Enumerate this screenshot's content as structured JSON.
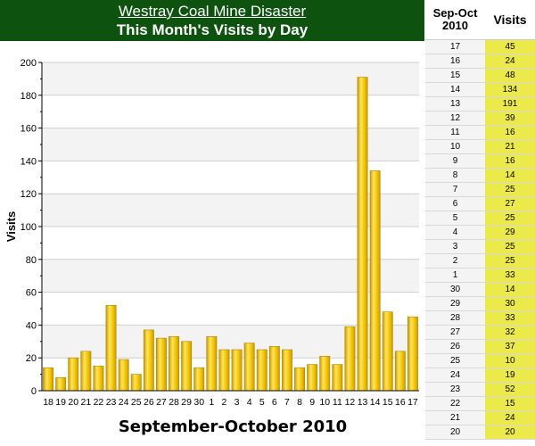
{
  "header": {
    "link_title": "Westray Coal Mine Disaster",
    "subtitle": "This Month's Visits by Day"
  },
  "colors": {
    "header_bg": "#0e5210",
    "bar_fill": "#f2c400",
    "bar_highlight": "#ffe45c",
    "bar_shadow": "#c99a00",
    "table_value_bg": "#ece94a"
  },
  "chart_data": {
    "type": "bar",
    "title": "This Month's Visits by Day",
    "xlabel": "September-October 2010",
    "ylabel": "Visits",
    "ylim": [
      0,
      200
    ],
    "yticks": [
      0,
      20,
      40,
      60,
      80,
      100,
      120,
      140,
      160,
      180,
      200
    ],
    "grid": true,
    "categories": [
      "18",
      "19",
      "20",
      "21",
      "22",
      "23",
      "24",
      "25",
      "26",
      "27",
      "28",
      "29",
      "30",
      "1",
      "2",
      "3",
      "4",
      "5",
      "6",
      "7",
      "8",
      "9",
      "10",
      "11",
      "12",
      "13",
      "14",
      "15",
      "16",
      "17"
    ],
    "values": [
      14,
      8,
      20,
      24,
      15,
      52,
      19,
      10,
      37,
      32,
      33,
      30,
      14,
      33,
      25,
      25,
      29,
      25,
      27,
      25,
      14,
      16,
      21,
      16,
      39,
      191,
      134,
      48,
      24,
      45
    ]
  },
  "table": {
    "date_header": "Sep-Oct 2010",
    "visits_header": "Visits",
    "rows": [
      {
        "day": "17",
        "visits": "45"
      },
      {
        "day": "16",
        "visits": "24"
      },
      {
        "day": "15",
        "visits": "48"
      },
      {
        "day": "14",
        "visits": "134"
      },
      {
        "day": "13",
        "visits": "191"
      },
      {
        "day": "12",
        "visits": "39"
      },
      {
        "day": "11",
        "visits": "16"
      },
      {
        "day": "10",
        "visits": "21"
      },
      {
        "day": "9",
        "visits": "16"
      },
      {
        "day": "8",
        "visits": "14"
      },
      {
        "day": "7",
        "visits": "25"
      },
      {
        "day": "6",
        "visits": "27"
      },
      {
        "day": "5",
        "visits": "25"
      },
      {
        "day": "4",
        "visits": "29"
      },
      {
        "day": "3",
        "visits": "25"
      },
      {
        "day": "2",
        "visits": "25"
      },
      {
        "day": "1",
        "visits": "33"
      },
      {
        "day": "30",
        "visits": "14"
      },
      {
        "day": "29",
        "visits": "30"
      },
      {
        "day": "28",
        "visits": "33"
      },
      {
        "day": "27",
        "visits": "32"
      },
      {
        "day": "26",
        "visits": "37"
      },
      {
        "day": "25",
        "visits": "10"
      },
      {
        "day": "24",
        "visits": "19"
      },
      {
        "day": "23",
        "visits": "52"
      },
      {
        "day": "22",
        "visits": "15"
      },
      {
        "day": "21",
        "visits": "24"
      },
      {
        "day": "20",
        "visits": "20"
      }
    ]
  }
}
